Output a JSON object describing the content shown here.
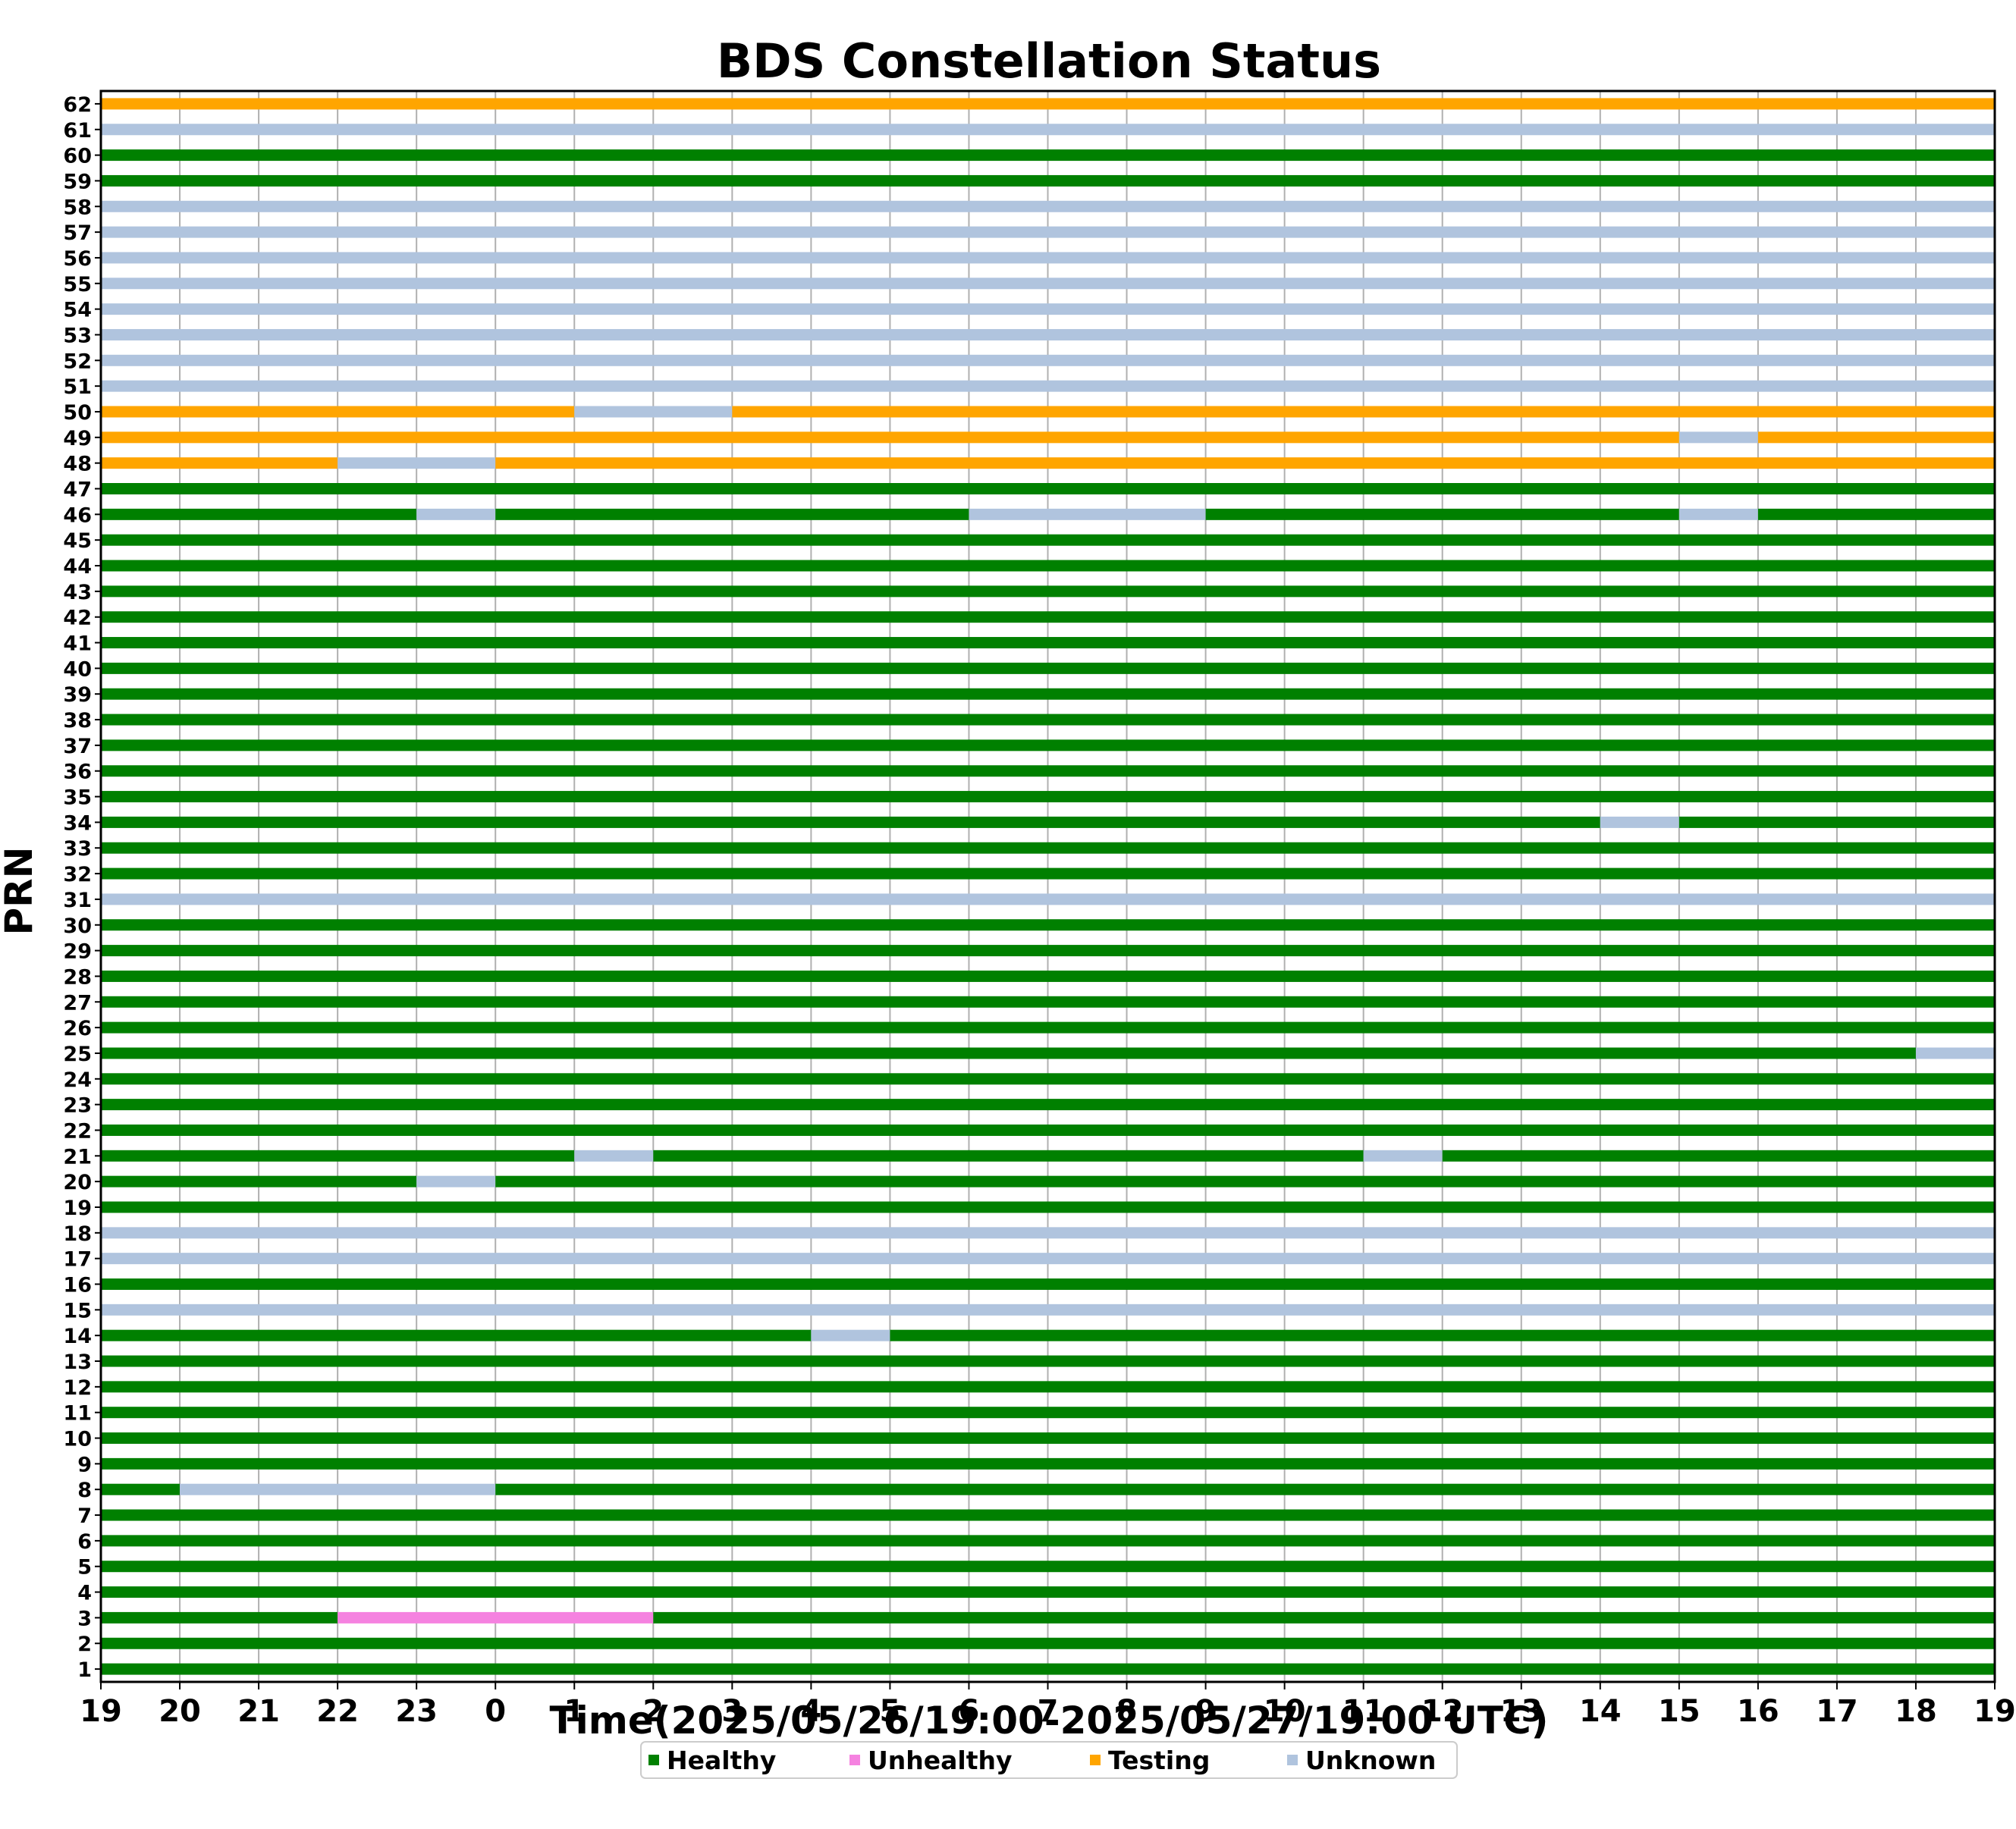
{
  "chart_data": {
    "type": "timeline",
    "title": "BDS Constellation Status",
    "xlabel": "Time(2025/05/26/19:00-2025/05/27/19:00 UTC)",
    "ylabel": "PRN",
    "x_range_hours": [
      0,
      24
    ],
    "x_ticks": [
      "19",
      "20",
      "21",
      "22",
      "23",
      "0",
      "1",
      "2",
      "3",
      "4",
      "5",
      "6",
      "7",
      "8",
      "9",
      "10",
      "11",
      "12",
      "13",
      "14",
      "15",
      "16",
      "17",
      "18",
      "19"
    ],
    "prns": [
      1,
      2,
      3,
      4,
      5,
      6,
      7,
      8,
      9,
      10,
      11,
      12,
      13,
      14,
      15,
      16,
      17,
      18,
      19,
      20,
      21,
      22,
      23,
      24,
      25,
      26,
      27,
      28,
      29,
      30,
      31,
      32,
      33,
      34,
      35,
      36,
      37,
      38,
      39,
      40,
      41,
      42,
      43,
      44,
      45,
      46,
      47,
      48,
      49,
      50,
      51,
      52,
      53,
      54,
      55,
      56,
      57,
      58,
      59,
      60,
      61,
      62
    ],
    "grid": "vertical",
    "legend_position": "bottom-center",
    "status_colors": {
      "Healthy": "#008000",
      "Unhealthy": "#f582e0",
      "Testing": "#ffa500",
      "Unknown": "#b0c4de"
    },
    "legend": [
      {
        "status": "Healthy",
        "label": "Healthy"
      },
      {
        "status": "Unhealthy",
        "label": "Unhealthy"
      },
      {
        "status": "Testing",
        "label": "Testing"
      },
      {
        "status": "Unknown",
        "label": "Unknown"
      }
    ],
    "default_status": "Healthy",
    "satellites": {
      "3": [
        [
          "Healthy",
          "19:00",
          "22:00"
        ],
        [
          "Unhealthy",
          "22:00",
          "02:00"
        ],
        [
          "Healthy",
          "02:00",
          "19:00"
        ]
      ],
      "8": [
        [
          "Healthy",
          "19:00",
          "20:00"
        ],
        [
          "Unknown",
          "20:00",
          "00:00"
        ],
        [
          "Healthy",
          "00:00",
          "19:00"
        ]
      ],
      "14": [
        [
          "Healthy",
          "19:00",
          "04:00"
        ],
        [
          "Unknown",
          "04:00",
          "05:00"
        ],
        [
          "Healthy",
          "05:00",
          "19:00"
        ]
      ],
      "15": [
        [
          "Unknown",
          "19:00",
          "19:00"
        ]
      ],
      "17": [
        [
          "Unknown",
          "19:00",
          "19:00"
        ]
      ],
      "18": [
        [
          "Unknown",
          "19:00",
          "19:00"
        ]
      ],
      "20": [
        [
          "Healthy",
          "19:00",
          "23:00"
        ],
        [
          "Unknown",
          "23:00",
          "00:00"
        ],
        [
          "Healthy",
          "00:00",
          "19:00"
        ]
      ],
      "21": [
        [
          "Healthy",
          "19:00",
          "01:00"
        ],
        [
          "Unknown",
          "01:00",
          "02:00"
        ],
        [
          "Healthy",
          "02:00",
          "11:00"
        ],
        [
          "Unknown",
          "11:00",
          "12:00"
        ],
        [
          "Healthy",
          "12:00",
          "19:00"
        ]
      ],
      "25": [
        [
          "Healthy",
          "19:00",
          "18:00"
        ],
        [
          "Unknown",
          "18:00",
          "19:00"
        ]
      ],
      "31": [
        [
          "Unknown",
          "19:00",
          "19:00"
        ]
      ],
      "34": [
        [
          "Healthy",
          "19:00",
          "14:00"
        ],
        [
          "Unknown",
          "14:00",
          "15:00"
        ],
        [
          "Healthy",
          "15:00",
          "19:00"
        ]
      ],
      "46": [
        [
          "Healthy",
          "19:00",
          "23:00"
        ],
        [
          "Unknown",
          "23:00",
          "00:00"
        ],
        [
          "Healthy",
          "00:00",
          "06:00"
        ],
        [
          "Unknown",
          "06:00",
          "09:00"
        ],
        [
          "Healthy",
          "09:00",
          "15:00"
        ],
        [
          "Unknown",
          "15:00",
          "16:00"
        ],
        [
          "Healthy",
          "16:00",
          "19:00"
        ]
      ],
      "48": [
        [
          "Testing",
          "19:00",
          "22:00"
        ],
        [
          "Unknown",
          "22:00",
          "00:00"
        ],
        [
          "Testing",
          "00:00",
          "19:00"
        ]
      ],
      "49": [
        [
          "Testing",
          "19:00",
          "15:00"
        ],
        [
          "Unknown",
          "15:00",
          "16:00"
        ],
        [
          "Testing",
          "16:00",
          "19:00"
        ]
      ],
      "50": [
        [
          "Testing",
          "19:00",
          "01:00"
        ],
        [
          "Unknown",
          "01:00",
          "03:00"
        ],
        [
          "Testing",
          "03:00",
          "19:00"
        ]
      ],
      "51": [
        [
          "Unknown",
          "19:00",
          "19:00"
        ]
      ],
      "52": [
        [
          "Unknown",
          "19:00",
          "19:00"
        ]
      ],
      "53": [
        [
          "Unknown",
          "19:00",
          "19:00"
        ]
      ],
      "54": [
        [
          "Unknown",
          "19:00",
          "19:00"
        ]
      ],
      "55": [
        [
          "Unknown",
          "19:00",
          "19:00"
        ]
      ],
      "56": [
        [
          "Unknown",
          "19:00",
          "19:00"
        ]
      ],
      "57": [
        [
          "Unknown",
          "19:00",
          "19:00"
        ]
      ],
      "58": [
        [
          "Unknown",
          "19:00",
          "19:00"
        ]
      ],
      "61": [
        [
          "Unknown",
          "19:00",
          "19:00"
        ]
      ],
      "62": [
        [
          "Testing",
          "19:00",
          "19:00"
        ]
      ]
    }
  }
}
